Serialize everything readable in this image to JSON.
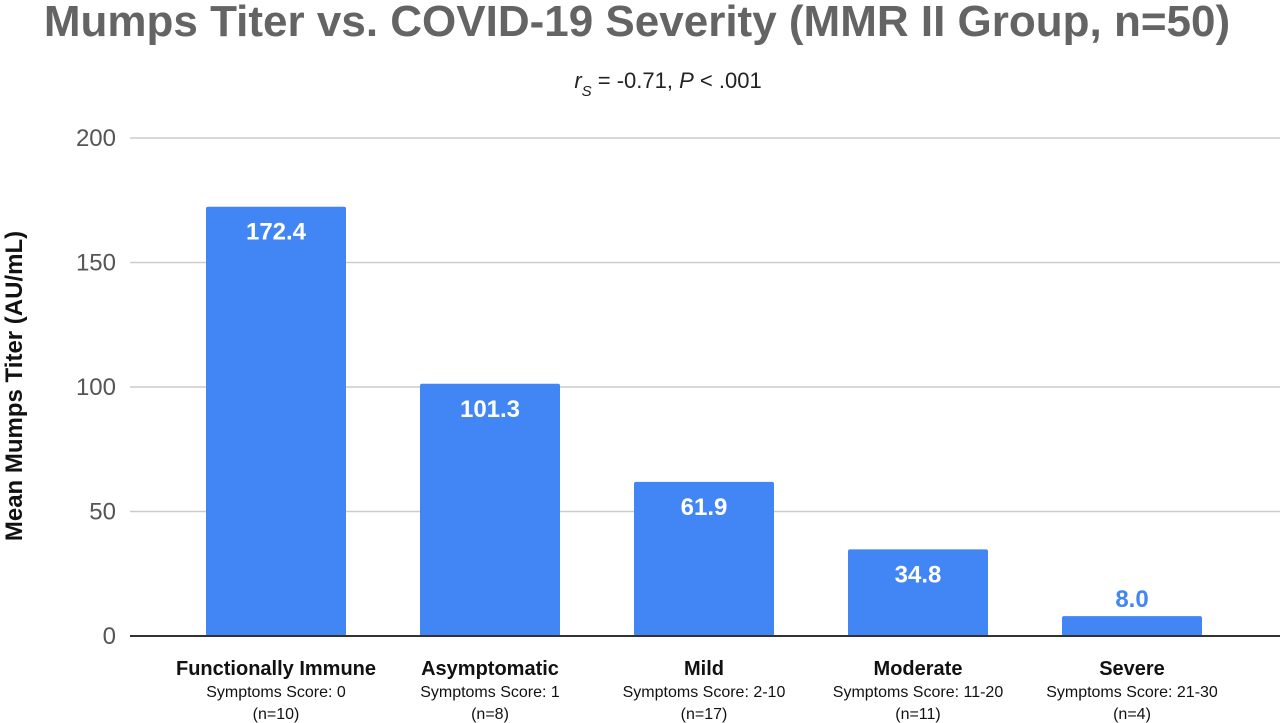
{
  "chart_data": {
    "type": "bar",
    "title": "Mumps Titer vs. COVID-19 Severity (MMR II Group, n=50)",
    "subtitle": {
      "r_symbol": "r",
      "r_subscript": "S",
      "r_value": " = -0.71, ",
      "p_symbol": "P",
      "p_value": " < .001"
    },
    "ylabel": "Mean Mumps Titer (AU/mL)",
    "xlabel": "",
    "ylim": [
      0,
      200
    ],
    "yticks": [
      "0",
      "50",
      "100",
      "150",
      "200"
    ],
    "grid": true,
    "categories": [
      "Functionally Immune",
      "Asymptomatic",
      "Mild",
      "Moderate",
      "Severe"
    ],
    "category_scores": [
      "Symptoms Score: 0",
      "Symptoms Score: 1",
      "Symptoms Score: 2-10",
      "Symptoms Score: 11-20",
      "Symptoms Score: 21-30"
    ],
    "category_counts": [
      "(n=10)",
      "(n=8)",
      "(n=17)",
      "(n=11)",
      "(n=4)"
    ],
    "values": [
      172.4,
      101.3,
      61.9,
      34.8,
      8.0
    ],
    "data_labels": [
      "172.4",
      "101.3",
      "61.9",
      "34.8",
      "8.0"
    ],
    "colors": {
      "bar": "#4285f4",
      "label_inside": "#ffffff",
      "label_outside": "#4285f4",
      "grid": "#cccccc",
      "axis": "#333333",
      "title": "#646464"
    }
  }
}
